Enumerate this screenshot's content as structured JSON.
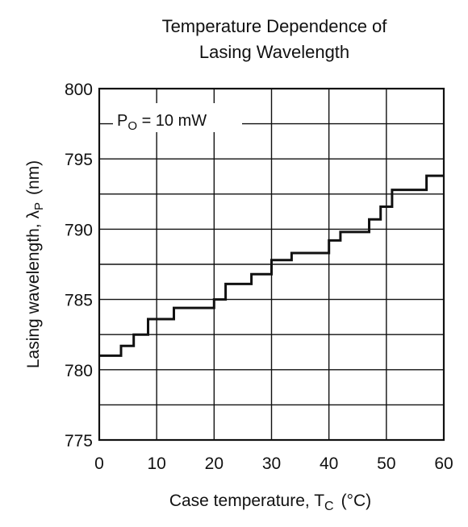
{
  "chart_data": {
    "type": "line",
    "step": true,
    "title": "Temperature Dependence of",
    "subtitle": "Lasing Wavelength",
    "xlabel": "Case temperature, T_C (°C)",
    "xlabel_main": "Case temperature, T",
    "xlabel_sub": "C",
    "xlabel_unit": "(°C)",
    "ylabel": "Lasing wavelength, λ_P (nm)",
    "ylabel_main": "Lasing wavelength, λ",
    "ylabel_sub": "P",
    "ylabel_unit": "(nm)",
    "annotation": "P_O = 10 mW",
    "annotation_main": "P",
    "annotation_sub": "O",
    "annotation_rest": " = 10 mW",
    "xlim": [
      0,
      60
    ],
    "ylim": [
      775,
      800
    ],
    "xticks": [
      0,
      10,
      20,
      30,
      40,
      50,
      60
    ],
    "yticks": [
      775,
      780,
      785,
      790,
      795,
      800
    ],
    "grid": true,
    "series": [
      {
        "x": [
          0,
          3.8,
          3.8,
          6.0,
          6.0,
          8.5,
          8.5,
          13.0,
          13.0,
          20.0,
          20.0,
          22.0,
          22.0,
          26.5,
          26.5,
          30.0,
          30.0,
          33.5,
          33.5,
          40.0,
          40.0,
          42.0,
          42.0,
          47.0,
          47.0,
          49.0,
          49.0,
          51.0,
          51.0,
          57.0,
          57.0,
          60.0
        ],
        "y": [
          781.0,
          781.0,
          781.7,
          781.7,
          782.5,
          782.5,
          783.6,
          783.6,
          784.4,
          784.4,
          785.0,
          785.0,
          786.1,
          786.1,
          786.8,
          786.8,
          787.8,
          787.8,
          788.3,
          788.3,
          789.2,
          789.2,
          789.8,
          789.8,
          790.7,
          790.7,
          791.6,
          791.6,
          792.8,
          792.8,
          793.8,
          793.8
        ]
      }
    ]
  }
}
